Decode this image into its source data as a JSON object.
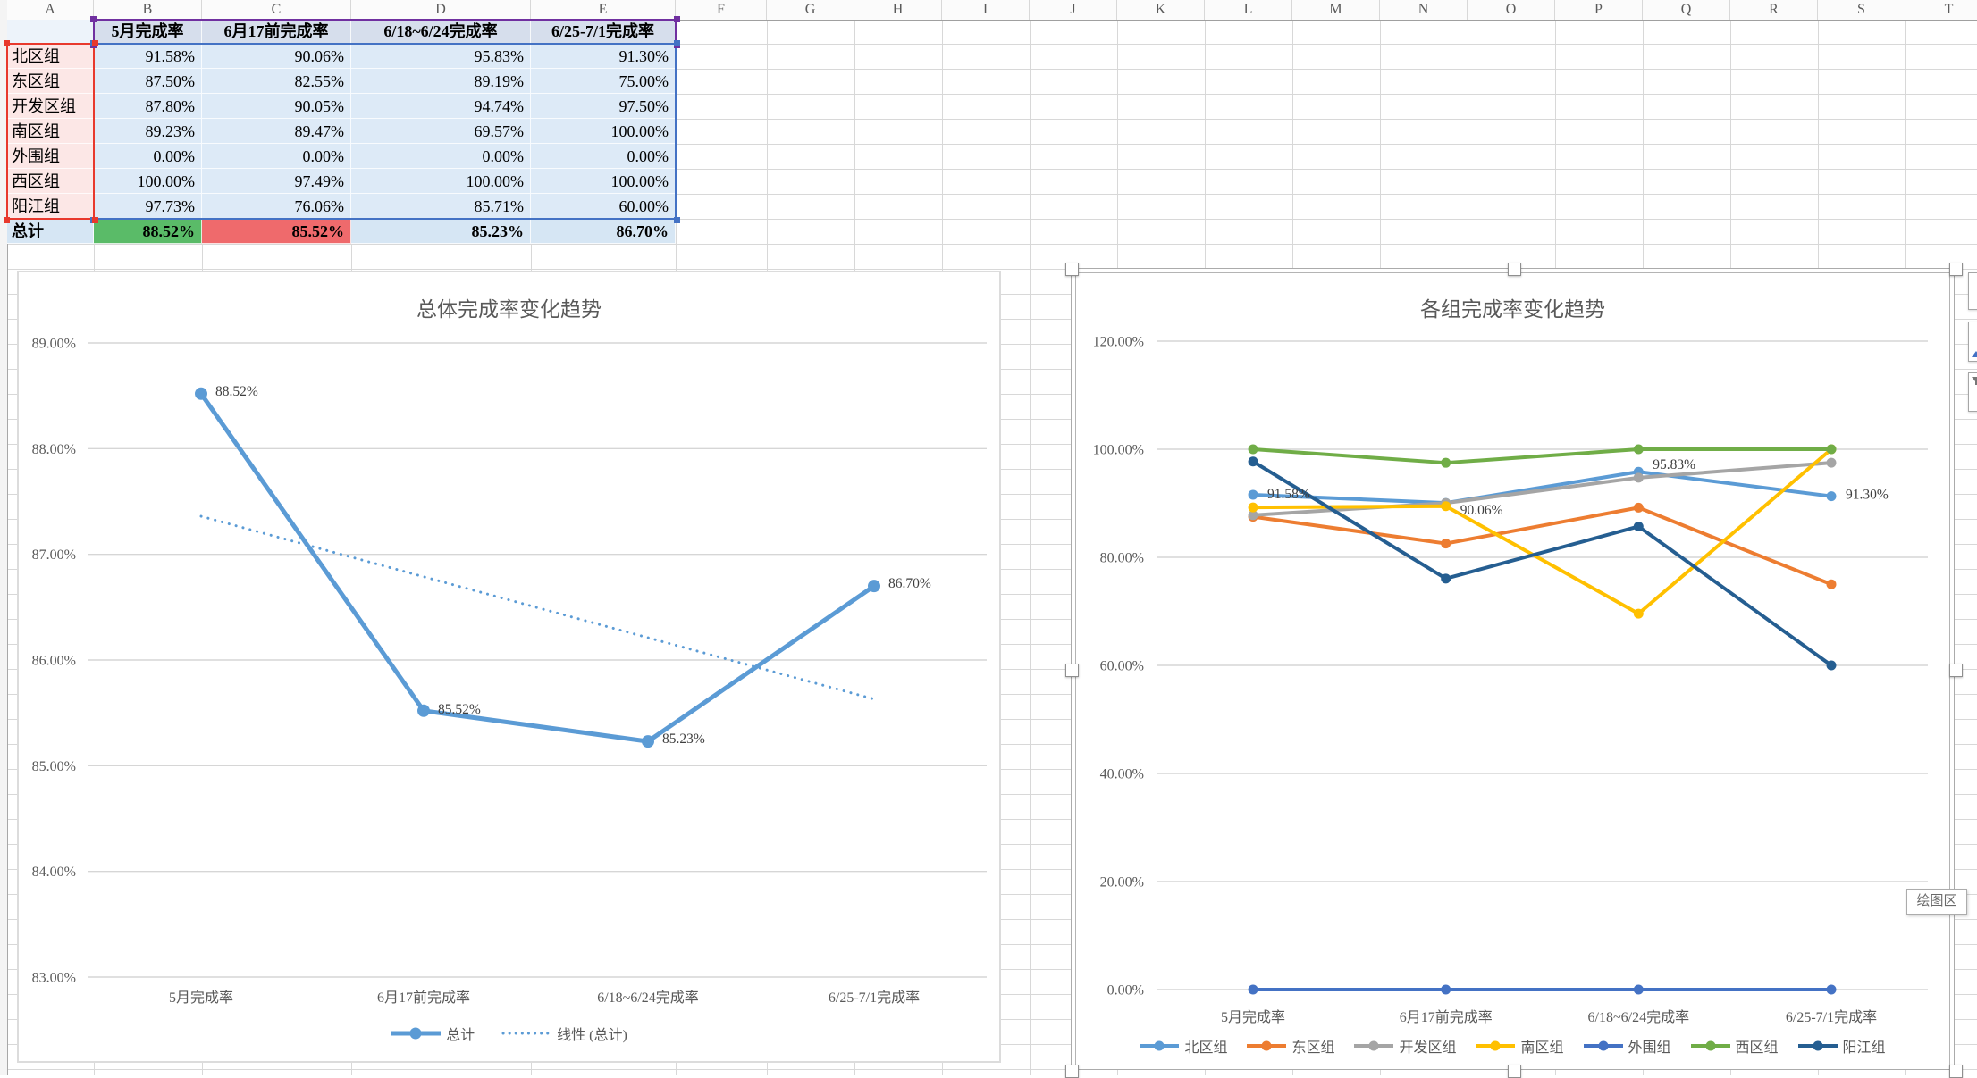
{
  "sheet": {
    "column_letters": [
      "A",
      "B",
      "C",
      "D",
      "E",
      "F",
      "G",
      "H",
      "I",
      "J",
      "K",
      "L",
      "M",
      "N",
      "O",
      "P",
      "Q",
      "R",
      "S",
      "T"
    ],
    "table": {
      "headers": [
        "5月完成率",
        "6月17前完成率",
        "6/18~6/24完成率",
        "6/25-7/1完成率"
      ],
      "row_labels": [
        "北区组",
        "东区组",
        "开发区组",
        "南区组",
        "外围组",
        "西区组",
        "阳江组"
      ],
      "rows": [
        [
          "91.58%",
          "90.06%",
          "95.83%",
          "91.30%"
        ],
        [
          "87.50%",
          "82.55%",
          "89.19%",
          "75.00%"
        ],
        [
          "87.80%",
          "90.05%",
          "94.74%",
          "97.50%"
        ],
        [
          "89.23%",
          "89.47%",
          "69.57%",
          "100.00%"
        ],
        [
          "0.00%",
          "0.00%",
          "0.00%",
          "0.00%"
        ],
        [
          "100.00%",
          "97.49%",
          "100.00%",
          "100.00%"
        ],
        [
          "97.73%",
          "76.06%",
          "85.71%",
          "60.00%"
        ]
      ],
      "total_label": "总计",
      "total_values": [
        "88.52%",
        "85.52%",
        "85.23%",
        "86.70%"
      ],
      "colors": {
        "header_bg": "#D6DEEC",
        "data_bg": "#DDEAF7",
        "label_bg": "#FCE7E6",
        "total_bg": "#D6E6F4",
        "total_green": "#5ABB68",
        "total_red": "#EF6A6C",
        "range_purple": "#7030A0",
        "range_red": "#E8392D",
        "range_blue": "#4472C4"
      }
    }
  },
  "tooltip": {
    "text": "绘图区"
  },
  "chart_data": [
    {
      "type": "line",
      "title": "总体完成率变化趋势",
      "categories": [
        "5月完成率",
        "6月17前完成率",
        "6/18~6/24完成率",
        "6/25-7/1完成率"
      ],
      "series": [
        {
          "name": "总计",
          "color": "#5B9BD5",
          "values": [
            88.52,
            85.52,
            85.23,
            86.7
          ],
          "labels": [
            "88.52%",
            "85.52%",
            "85.23%",
            "86.70%"
          ]
        }
      ],
      "trendline": {
        "name": "线性 (总计)",
        "color": "#5B9BD5",
        "values": [
          87.36,
          85.63
        ]
      },
      "ylim": [
        83,
        89
      ],
      "ystep": 1,
      "ylabel": "",
      "xlabel": "",
      "grid": true,
      "legend_position": "bottom"
    },
    {
      "type": "line",
      "title": "各组完成率变化趋势",
      "categories": [
        "5月完成率",
        "6月17前完成率",
        "6/18~6/24完成率",
        "6/25-7/1完成率"
      ],
      "series": [
        {
          "name": "北区组",
          "color": "#5B9BD5",
          "values": [
            91.58,
            90.06,
            95.83,
            91.3
          ],
          "labels": [
            "91.58%",
            "90.06%",
            "95.83%",
            "91.30%"
          ]
        },
        {
          "name": "东区组",
          "color": "#ED7D31",
          "values": [
            87.5,
            82.55,
            89.19,
            75.0
          ]
        },
        {
          "name": "开发区组",
          "color": "#A5A5A5",
          "values": [
            87.8,
            90.05,
            94.74,
            97.5
          ]
        },
        {
          "name": "南区组",
          "color": "#FFC000",
          "values": [
            89.23,
            89.47,
            69.57,
            100.0
          ]
        },
        {
          "name": "外围组",
          "color": "#4472C4",
          "values": [
            0,
            0,
            0,
            0
          ]
        },
        {
          "name": "西区组",
          "color": "#70AD47",
          "values": [
            100.0,
            97.49,
            100.0,
            100.0
          ]
        },
        {
          "name": "阳江组",
          "color": "#255E91",
          "values": [
            97.73,
            76.06,
            85.71,
            60.0
          ]
        }
      ],
      "ylim": [
        0,
        120
      ],
      "ystep": 20,
      "ylabel": "",
      "xlabel": "",
      "grid": true,
      "legend_position": "bottom"
    }
  ]
}
